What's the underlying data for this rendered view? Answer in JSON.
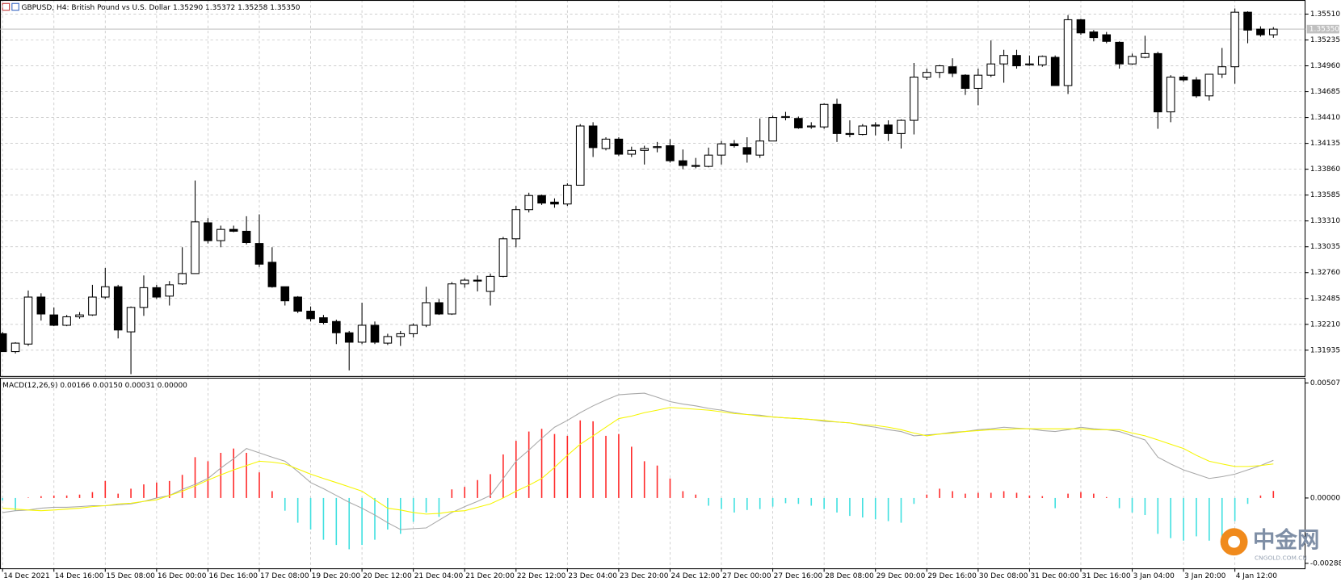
{
  "chart_data": [
    {
      "type": "candlestick",
      "title": "GBPUSD, H4:  British Pound vs U.S. Dollar  1.35290 1.35372 1.35258 1.35350",
      "categories": [
        "14 Dec 2021",
        null,
        null,
        null,
        "14 Dec 16:00",
        null,
        null,
        null,
        "15 Dec 08:00",
        null,
        null,
        null,
        "16 Dec 00:00",
        null,
        null,
        null,
        "16 Dec 16:00",
        null,
        null,
        null,
        "17 Dec 08:00",
        null,
        null,
        null,
        "19 Dec 20:00",
        null,
        null,
        null,
        "20 Dec 12:00",
        null,
        null,
        null,
        "21 Dec 04:00",
        null,
        null,
        null,
        "21 Dec 20:00",
        null,
        null,
        null,
        "22 Dec 12:00",
        null,
        null,
        null,
        "23 Dec 04:00",
        null,
        null,
        null,
        "23 Dec 20:00",
        null,
        null,
        null,
        "24 Dec 12:00",
        null,
        null,
        null,
        "27 Dec 00:00",
        null,
        null,
        null,
        "27 Dec 16:00",
        null,
        null,
        null,
        "28 Dec 08:00",
        null,
        null,
        null,
        "29 Dec 00:00",
        null,
        null,
        null,
        "29 Dec 16:00",
        null,
        null,
        null,
        "30 Dec 08:00",
        null,
        null,
        null,
        "31 Dec 00:00",
        null,
        null,
        null,
        "31 Dec 16:00",
        null,
        null,
        null,
        "3 Jan 04:00",
        null,
        null,
        null,
        "3 Jan 20:00",
        null,
        null,
        null,
        "4 Jan 12:00",
        null,
        null,
        null
      ],
      "open": [
        1.3211,
        1.3192,
        1.32,
        1.325,
        1.3231,
        1.322,
        1.3229,
        1.3231,
        1.325,
        1.3261,
        1.3213,
        1.3239,
        1.326,
        1.3251,
        1.3264,
        1.3275,
        1.3329,
        1.331,
        1.3322,
        1.332,
        1.3307,
        1.3287,
        1.3261,
        1.325,
        1.3235,
        1.3228,
        1.3224,
        1.3212,
        1.3202,
        1.322,
        1.3201,
        1.3208,
        1.3211,
        1.322,
        1.3244,
        1.3232,
        1.3264,
        1.3268,
        1.3256,
        1.3272,
        1.3312,
        1.3343,
        1.3358,
        1.3351,
        1.3349,
        1.3369,
        1.3432,
        1.3408,
        1.3418,
        1.3402,
        1.3406,
        1.3409,
        1.3411,
        1.3395,
        1.339,
        1.3389,
        1.3401,
        1.3413,
        1.3409,
        1.3401,
        1.3416,
        1.3441,
        1.344,
        1.3431,
        1.3431,
        1.3455,
        1.3424,
        1.3423,
        1.3432,
        1.3433,
        1.3424,
        1.3438,
        1.3484,
        1.3489,
        1.3495,
        1.3486,
        1.3472,
        1.3486,
        1.3498,
        1.3507,
        1.3497,
        1.3497,
        1.3505,
        1.3475,
        1.3545,
        1.3532,
        1.3529,
        1.3521,
        1.3498,
        1.3505,
        1.3509,
        1.3447,
        1.3484,
        1.3481,
        1.3464,
        1.3487,
        1.3495,
        1.3553,
        1.3535,
        1.3529
      ],
      "high": [
        1.3213,
        1.3202,
        1.3257,
        1.3254,
        1.3239,
        1.3231,
        1.3234,
        1.3263,
        1.3281,
        1.3263,
        1.324,
        1.3273,
        1.3263,
        1.3267,
        1.3303,
        1.3374,
        1.3334,
        1.3326,
        1.3326,
        1.3336,
        1.3338,
        1.3303,
        1.3261,
        1.3251,
        1.324,
        1.3231,
        1.3226,
        1.3214,
        1.3244,
        1.3224,
        1.3211,
        1.3214,
        1.3222,
        1.3261,
        1.3248,
        1.3266,
        1.327,
        1.3273,
        1.3275,
        1.3314,
        1.3347,
        1.3361,
        1.3359,
        1.3355,
        1.3371,
        1.3434,
        1.3436,
        1.342,
        1.342,
        1.341,
        1.3411,
        1.3415,
        1.3418,
        1.3407,
        1.3398,
        1.3409,
        1.3416,
        1.3417,
        1.342,
        1.344,
        1.3443,
        1.3447,
        1.3442,
        1.3436,
        1.3456,
        1.3461,
        1.3438,
        1.3434,
        1.3436,
        1.3438,
        1.3439,
        1.3499,
        1.3493,
        1.3497,
        1.3504,
        1.3487,
        1.3493,
        1.3523,
        1.3513,
        1.3513,
        1.3507,
        1.3507,
        1.3507,
        1.355,
        1.3546,
        1.3534,
        1.3532,
        1.3522,
        1.3509,
        1.3528,
        1.3511,
        1.3486,
        1.3486,
        1.3484,
        1.3487,
        1.3515,
        1.3557,
        1.3554,
        1.3538,
        1.35372
      ],
      "low": [
        1.3192,
        1.319,
        1.3198,
        1.3225,
        1.3219,
        1.3219,
        1.3227,
        1.323,
        1.3248,
        1.3206,
        1.3168,
        1.323,
        1.3248,
        1.3241,
        1.3263,
        1.3275,
        1.3307,
        1.3303,
        1.3319,
        1.3306,
        1.3282,
        1.326,
        1.3241,
        1.3233,
        1.3224,
        1.3221,
        1.32,
        1.3172,
        1.32,
        1.32,
        1.3199,
        1.3198,
        1.3207,
        1.3218,
        1.3231,
        1.3231,
        1.326,
        1.3256,
        1.3241,
        1.3271,
        1.3303,
        1.334,
        1.3348,
        1.3345,
        1.3347,
        1.3369,
        1.3399,
        1.3406,
        1.34,
        1.3399,
        1.3391,
        1.3404,
        1.3393,
        1.3386,
        1.3387,
        1.3388,
        1.3391,
        1.3409,
        1.3393,
        1.3398,
        1.3416,
        1.3438,
        1.3429,
        1.3429,
        1.3429,
        1.3415,
        1.342,
        1.3422,
        1.3422,
        1.3416,
        1.3408,
        1.3423,
        1.3481,
        1.3483,
        1.3484,
        1.3465,
        1.3454,
        1.3484,
        1.3478,
        1.3493,
        1.3496,
        1.3495,
        1.3475,
        1.3466,
        1.3529,
        1.3522,
        1.352,
        1.3493,
        1.3497,
        1.3504,
        1.3429,
        1.3436,
        1.3479,
        1.3462,
        1.3459,
        1.3483,
        1.3477,
        1.352,
        1.3527,
        1.35258
      ],
      "close": [
        1.3192,
        1.3201,
        1.325,
        1.3232,
        1.322,
        1.3229,
        1.3231,
        1.325,
        1.3261,
        1.3215,
        1.3239,
        1.326,
        1.325,
        1.3263,
        1.3275,
        1.333,
        1.331,
        1.3322,
        1.332,
        1.3308,
        1.3285,
        1.3261,
        1.3246,
        1.3235,
        1.3227,
        1.3223,
        1.3212,
        1.3202,
        1.322,
        1.3202,
        1.3208,
        1.3211,
        1.322,
        1.3244,
        1.3232,
        1.3264,
        1.3268,
        1.3267,
        1.3272,
        1.3312,
        1.3343,
        1.3358,
        1.335,
        1.3349,
        1.3369,
        1.3432,
        1.3409,
        1.3418,
        1.3402,
        1.3406,
        1.3408,
        1.341,
        1.3395,
        1.339,
        1.3389,
        1.3401,
        1.3413,
        1.3411,
        1.3402,
        1.3416,
        1.3441,
        1.3442,
        1.343,
        1.3432,
        1.3455,
        1.3424,
        1.3423,
        1.3432,
        1.3433,
        1.3424,
        1.3438,
        1.3484,
        1.3489,
        1.3496,
        1.3488,
        1.3472,
        1.3486,
        1.3498,
        1.3507,
        1.3496,
        1.3498,
        1.3506,
        1.3475,
        1.3545,
        1.3531,
        1.3526,
        1.3522,
        1.3498,
        1.3506,
        1.3509,
        1.3447,
        1.3484,
        1.3481,
        1.3464,
        1.3487,
        1.3495,
        1.3553,
        1.3534,
        1.3529,
        1.3535
      ],
      "up_color": "#ffffff",
      "down_color": "#000000",
      "ylim": [
        1.3166,
        1.3566
      ],
      "yticks": [
        {
          "value": 1.3551,
          "label": "1.35510"
        },
        1.35235,
        {
          "value": 1.3496,
          "label": "1.34960"
        },
        1.34685,
        {
          "value": 1.3441,
          "label": "1.34410"
        },
        1.34135,
        {
          "value": 1.3386,
          "label": "1.33860"
        },
        1.33585,
        {
          "value": 1.3331,
          "label": "1.33310"
        },
        1.33035,
        {
          "value": 1.3276,
          "label": "1.32760"
        },
        1.32485,
        {
          "value": 1.3221,
          "label": "1.32210"
        },
        1.31935
      ],
      "last_price": {
        "value": 1.3535,
        "label": "1.35350"
      },
      "grid": true
    },
    {
      "type": "macd",
      "title": "MACD(12,26,9) 0.00166 0.00150 0.00031 0.00000",
      "histogram": {
        "values": [
          -0.00011,
          -0.00056,
          2e-05,
          8e-05,
          0.00011,
          0.00011,
          0.00015,
          0.00026,
          0.00075,
          0.00019,
          0.00041,
          0.0006,
          0.00068,
          0.00075,
          0.00102,
          0.0018,
          0.00162,
          0.00199,
          0.00218,
          0.00199,
          0.00113,
          0.0003,
          -0.00056,
          -0.00109,
          -0.00139,
          -0.00184,
          -0.00207,
          -0.00226,
          -0.00207,
          -0.00184,
          -0.00139,
          -0.00158,
          -0.00105,
          -0.00064,
          -0.00083,
          0.00038,
          0.00049,
          0.00079,
          0.00105,
          0.00192,
          0.00252,
          0.00293,
          0.00305,
          0.00282,
          0.00274,
          0.00342,
          0.00338,
          0.00274,
          0.00282,
          0.00226,
          0.00162,
          0.00143,
          0.00086,
          0.0003,
          0.00015,
          -0.00034,
          -0.00049,
          -0.00064,
          -0.00053,
          -0.00049,
          -0.00038,
          -0.00023,
          -0.00026,
          -0.00034,
          -0.00049,
          -0.00064,
          -0.00079,
          -0.00086,
          -0.00094,
          -0.00102,
          -0.00109,
          -0.00026,
          0.00015,
          0.00041,
          0.0003,
          0.00019,
          0.00023,
          0.00023,
          0.0003,
          0.00023,
          0.00011,
          8e-05,
          -0.00045,
          0.00019,
          0.00026,
          0.00019,
          4e-05,
          -0.00045,
          -0.00064,
          -0.00075,
          -0.00158,
          -0.00177,
          -0.00188,
          -0.00169,
          -0.00188,
          -0.00214,
          -0.00102,
          -0.00026,
          0.00011,
          0.00031
        ],
        "positive_color": "#ff2a2a",
        "negative_color": "#3fe0e0"
      },
      "series": [
        {
          "color": "#a8a8a8",
          "values": [
            -0.00064,
            -0.00056,
            -0.00053,
            -0.00045,
            -0.00041,
            -0.00041,
            -0.00038,
            -0.00034,
            -0.00034,
            -0.0003,
            -0.00026,
            -0.00015,
            0,
            0.00011,
            0.00038,
            0.0006,
            0.00086,
            0.00132,
            0.00173,
            0.00218,
            0.00199,
            0.0018,
            0.00162,
            0.00117,
            0.00068,
            0.00041,
            0.00011,
            -0.00019,
            -0.00045,
            -0.00075,
            -0.00109,
            -0.00139,
            -0.00135,
            -0.00132,
            -0.00098,
            -0.00064,
            -0.00038,
            -0.00015,
            0.00011,
            0.00086,
            0.00162,
            0.00211,
            0.00263,
            0.00312,
            0.00342,
            0.00376,
            0.00406,
            0.00432,
            0.00455,
            0.00459,
            0.00462,
            0.00444,
            0.00425,
            0.00414,
            0.00406,
            0.00395,
            0.00387,
            0.00376,
            0.00368,
            0.00365,
            0.00357,
            0.00353,
            0.0035,
            0.00346,
            0.00338,
            0.00335,
            0.00331,
            0.0032,
            0.00312,
            0.00301,
            0.00293,
            0.00274,
            0.00278,
            0.00282,
            0.0029,
            0.00293,
            0.00301,
            0.00305,
            0.00312,
            0.00308,
            0.00305,
            0.00297,
            0.00293,
            0.00301,
            0.00312,
            0.00305,
            0.00301,
            0.00293,
            0.00274,
            0.00256,
            0.0018,
            0.0015,
            0.00124,
            0.00105,
            0.00086,
            0.00094,
            0.00105,
            0.00124,
            0.00143,
            0.00166
          ]
        },
        {
          "color": "#f5f500",
          "values": [
            -0.00045,
            -0.00049,
            -0.00053,
            -0.00056,
            -0.00053,
            -0.00049,
            -0.00045,
            -0.00038,
            -0.00034,
            -0.00026,
            -0.00023,
            -0.00015,
            -8e-05,
            0.00011,
            0.0003,
            0.00053,
            0.00079,
            0.00102,
            0.00124,
            0.00143,
            0.00162,
            0.00158,
            0.0015,
            0.00128,
            0.00105,
            0.00086,
            0.00068,
            0.00049,
            0.0003,
            -8e-05,
            -0.00045,
            -0.00053,
            -0.00064,
            -0.00071,
            -0.00068,
            -0.0006,
            -0.00056,
            -0.00041,
            -0.00026,
            0,
            0.0003,
            0.00056,
            0.00086,
            0.00135,
            0.00188,
            0.00237,
            0.00274,
            0.00312,
            0.0035,
            0.00361,
            0.00376,
            0.00387,
            0.00399,
            0.00395,
            0.00391,
            0.00387,
            0.0038,
            0.00372,
            0.00368,
            0.00361,
            0.00357,
            0.00353,
            0.0035,
            0.00346,
            0.00342,
            0.00335,
            0.00331,
            0.00323,
            0.0032,
            0.00312,
            0.00301,
            0.00286,
            0.00274,
            0.00282,
            0.00286,
            0.00293,
            0.00297,
            0.00301,
            0.00301,
            0.00305,
            0.00305,
            0.00305,
            0.00305,
            0.00305,
            0.00305,
            0.00301,
            0.00301,
            0.00301,
            0.00286,
            0.00274,
            0.00256,
            0.00237,
            0.00218,
            0.00188,
            0.00162,
            0.0015,
            0.00139,
            0.00139,
            0.00143,
            0.0015
          ]
        }
      ],
      "ylim": [
        -0.0031,
        0.0053
      ],
      "yticks": [
        0.00507,
        {
          "value": 0,
          "label": "0.00000"
        },
        -0.00288
      ]
    }
  ],
  "watermark": {
    "title": "中金网",
    "subtitle": "CNGOLD.COM.CN"
  }
}
